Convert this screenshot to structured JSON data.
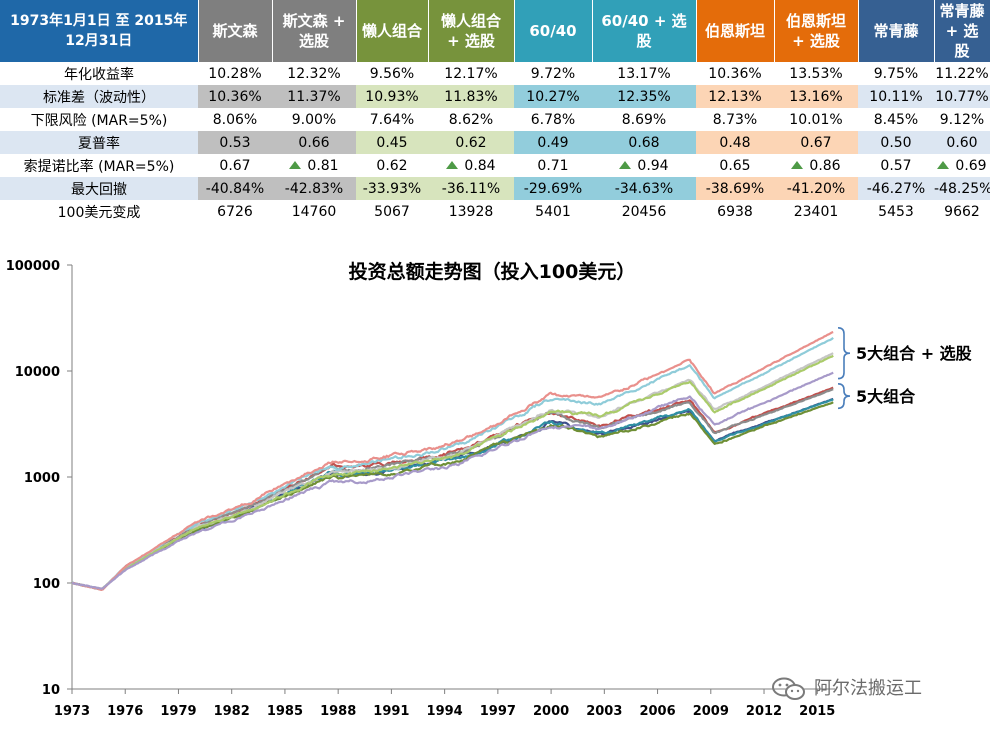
{
  "table": {
    "period_label": "1973年1月1日 至 2015年12月31日",
    "columns": [
      {
        "label": "斯文森",
        "header_color": "#7f7f7f",
        "band_color": "#bfbfbf"
      },
      {
        "label": "斯文森 + 选股",
        "header_color": "#7f7f7f",
        "band_color": "#bfbfbf"
      },
      {
        "label": "懒人组合",
        "header_color": "#77933c",
        "band_color": "#d7e4bd"
      },
      {
        "label": "懒人组合 + 选股",
        "header_color": "#77933c",
        "band_color": "#d7e4bd"
      },
      {
        "label": "60/40",
        "header_color": "#31a0b8",
        "band_color": "#92cddc"
      },
      {
        "label": "60/40 + 选股",
        "header_color": "#31a0b8",
        "band_color": "#92cddc"
      },
      {
        "label": "伯恩斯坦",
        "header_color": "#e46c0a",
        "band_color": "#fcd5b5"
      },
      {
        "label": "伯恩斯坦 + 选股",
        "header_color": "#e46c0a",
        "band_color": "#fcd5b5"
      },
      {
        "label": "常青藤",
        "header_color": "#366092",
        "band_color": "#dce6f2"
      },
      {
        "label": "常青藤 + 选股",
        "header_color": "#366092",
        "band_color": "#dce6f2"
      }
    ],
    "rows": [
      {
        "label": "年化收益率",
        "shaded": false,
        "values": [
          "10.28%",
          "12.32%",
          "9.56%",
          "12.17%",
          "9.72%",
          "13.17%",
          "10.36%",
          "13.53%",
          "9.75%",
          "11.22%"
        ]
      },
      {
        "label": "标准差（波动性）",
        "shaded": true,
        "values": [
          "10.36%",
          "11.37%",
          "10.93%",
          "11.83%",
          "10.27%",
          "12.35%",
          "12.13%",
          "13.16%",
          "10.11%",
          "10.77%"
        ]
      },
      {
        "label": "下限风险 (MAR=5%)",
        "shaded": false,
        "values": [
          "8.06%",
          "9.00%",
          "7.64%",
          "8.62%",
          "6.78%",
          "8.69%",
          "8.73%",
          "10.01%",
          "8.45%",
          "9.12%"
        ]
      },
      {
        "label": "夏普率",
        "shaded": true,
        "values": [
          "0.53",
          "0.66",
          "0.45",
          "0.62",
          "0.49",
          "0.68",
          "0.48",
          "0.67",
          "0.50",
          "0.60"
        ]
      },
      {
        "label": "索提诺比率 (MAR=5%)",
        "shaded": false,
        "values": [
          "0.67",
          "0.81",
          "0.62",
          "0.84",
          "0.71",
          "0.94",
          "0.65",
          "0.86",
          "0.57",
          "0.69"
        ],
        "up_arrows": [
          false,
          true,
          false,
          true,
          false,
          true,
          false,
          true,
          false,
          true
        ]
      },
      {
        "label": "最大回撤",
        "shaded": true,
        "values": [
          "-40.84%",
          "-42.83%",
          "-33.93%",
          "-36.11%",
          "-29.69%",
          "-34.63%",
          "-38.69%",
          "-41.20%",
          "-46.27%",
          "-48.25%"
        ]
      },
      {
        "label": "100美元变成",
        "shaded": false,
        "values": [
          "6726",
          "14760",
          "5067",
          "13928",
          "5401",
          "20456",
          "6938",
          "23401",
          "5453",
          "9662"
        ]
      }
    ],
    "label_band_color": "#dce6f2",
    "arrow_color": "#4e9a46"
  },
  "chart_data": {
    "type": "line",
    "title": "投资总额走势图（投入100美元）",
    "y_scale": "log",
    "ylim": [
      10,
      100000
    ],
    "y_ticks": [
      10,
      100,
      1000,
      10000,
      100000
    ],
    "x_range": [
      1973,
      2016
    ],
    "x_ticks": [
      1973,
      1976,
      1979,
      1982,
      1985,
      1988,
      1991,
      1994,
      1997,
      2000,
      2003,
      2006,
      2009,
      2012,
      2015
    ],
    "grid": false,
    "legend": "none",
    "annotations": [
      {
        "text": "5大组合 + 选股",
        "group": "plus"
      },
      {
        "text": "5大组合",
        "group": "base"
      }
    ],
    "anchors": {
      "x": [
        1973,
        1974.7,
        1976,
        1980,
        1983,
        1987.7,
        1988,
        1990.5,
        1995,
        2000,
        2002.8,
        2007.8,
        2009.2,
        2015.9
      ],
      "base_shape": [
        0,
        -0.05,
        0.12,
        0.42,
        0.57,
        0.87,
        0.85,
        0.88,
        0.99,
        1.27,
        1.17,
        1.36,
        1.12,
        1.45
      ],
      "plus_shape": [
        0,
        -0.05,
        0.12,
        0.45,
        0.6,
        0.9,
        0.88,
        0.93,
        1.05,
        1.4,
        1.36,
        1.65,
        1.4,
        1.86
      ]
    },
    "series": [
      {
        "group": "base",
        "color": "#8c8c8c",
        "end_value": 6726
      },
      {
        "group": "plus",
        "color": "#c5c5c5",
        "end_value": 14760
      },
      {
        "group": "base",
        "color": "#6f8f35",
        "end_value": 5067
      },
      {
        "group": "plus",
        "color": "#aacb6a",
        "end_value": 13928
      },
      {
        "group": "base",
        "color": "#2f8fa3",
        "end_value": 5401
      },
      {
        "group": "plus",
        "color": "#8fccd9",
        "end_value": 20456
      },
      {
        "group": "base",
        "color": "#c0504d",
        "end_value": 6938
      },
      {
        "group": "plus",
        "color": "#e9908c",
        "end_value": 23401
      },
      {
        "group": "base",
        "color": "#3e4f8a",
        "end_value": 5453
      },
      {
        "group": "plus",
        "color": "#a79ac9",
        "end_value": 9662
      }
    ],
    "brace_color": "#4a7ebb"
  },
  "watermark": {
    "text": "阿尔法搬运工",
    "icon": "wechat-icon"
  }
}
